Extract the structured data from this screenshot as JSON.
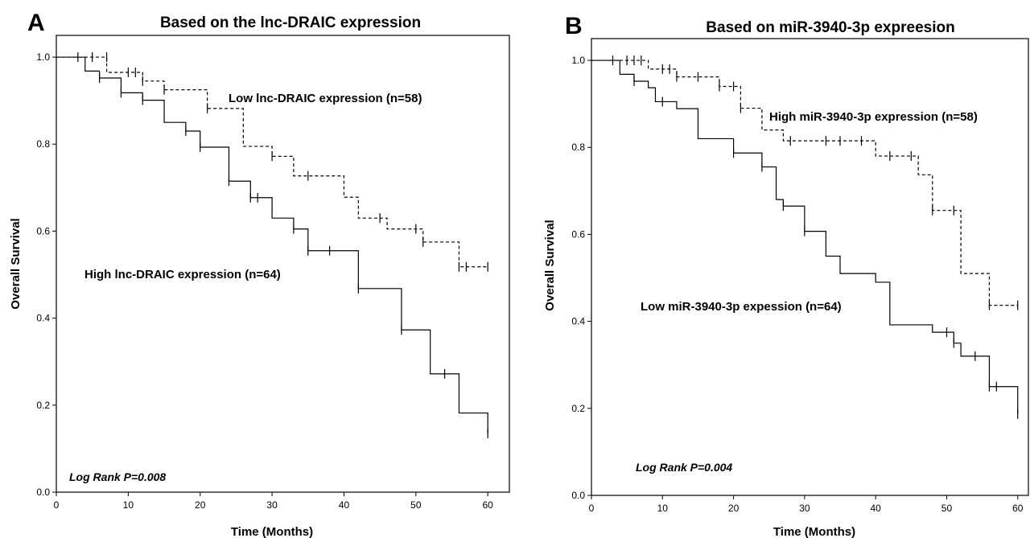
{
  "chart_data": [
    {
      "type": "line",
      "panel_letter": "A",
      "title": "Based on the lnc-DRAIC expression",
      "xlabel": "Time (Months)",
      "ylabel": "Overall Survival",
      "xlim": [
        0,
        63
      ],
      "ylim": [
        0.0,
        1.05
      ],
      "xticks": [
        0,
        10,
        20,
        30,
        40,
        50,
        60
      ],
      "xtick_labels": [
        "0",
        "10",
        "20",
        "30",
        "40",
        "50",
        "60"
      ],
      "yticks": [
        0.0,
        0.2,
        0.4,
        0.6,
        0.8,
        1.0
      ],
      "ytick_labels": [
        "0.0",
        "0.2",
        "0.4",
        "0.6",
        "0.8",
        "1.0"
      ],
      "annotation": "Log Rank P=0.008",
      "series": [
        {
          "name": "Low lnc-DRAIC expression (n=58)",
          "style": "dashed",
          "steps": [
            [
              0,
              1.0
            ],
            [
              7,
              0.965
            ],
            [
              12,
              0.945
            ],
            [
              15,
              0.925
            ],
            [
              21,
              0.882
            ],
            [
              26,
              0.795
            ],
            [
              30,
              0.772
            ],
            [
              33,
              0.727
            ],
            [
              40,
              0.678
            ],
            [
              42,
              0.63
            ],
            [
              46,
              0.605
            ],
            [
              51,
              0.575
            ],
            [
              56,
              0.518
            ]
          ],
          "end_x": 60,
          "censored": [
            [
              3,
              1.0
            ],
            [
              5,
              1.0
            ],
            [
              7,
              1.0
            ],
            [
              10,
              0.965
            ],
            [
              11,
              0.965
            ],
            [
              12,
              0.945
            ],
            [
              15,
              0.925
            ],
            [
              21,
              0.882
            ],
            [
              30,
              0.772
            ],
            [
              35,
              0.727
            ],
            [
              45,
              0.63
            ],
            [
              50,
              0.605
            ],
            [
              51,
              0.575
            ],
            [
              56,
              0.518
            ],
            [
              57,
              0.518
            ],
            [
              60,
              0.518
            ]
          ]
        },
        {
          "name": "High lnc-DRAIC expression (n=64)",
          "style": "solid",
          "steps": [
            [
              0,
              1.0
            ],
            [
              4,
              0.968
            ],
            [
              6,
              0.952
            ],
            [
              9,
              0.918
            ],
            [
              12,
              0.901
            ],
            [
              15,
              0.85
            ],
            [
              18,
              0.83
            ],
            [
              20,
              0.793
            ],
            [
              24,
              0.715
            ],
            [
              27,
              0.677
            ],
            [
              30,
              0.63
            ],
            [
              33,
              0.605
            ],
            [
              35,
              0.555
            ],
            [
              42,
              0.468
            ],
            [
              48,
              0.373
            ],
            [
              52,
              0.272
            ],
            [
              56,
              0.182
            ],
            [
              60,
              0.135
            ]
          ],
          "end_x": 60,
          "censored": [
            [
              6,
              0.952
            ],
            [
              9,
              0.918
            ],
            [
              12,
              0.901
            ],
            [
              18,
              0.83
            ],
            [
              20,
              0.793
            ],
            [
              24,
              0.715
            ],
            [
              27,
              0.677
            ],
            [
              28,
              0.677
            ],
            [
              33,
              0.605
            ],
            [
              35,
              0.555
            ],
            [
              38,
              0.555
            ],
            [
              42,
              0.468
            ],
            [
              48,
              0.373
            ],
            [
              54,
              0.272
            ],
            [
              60,
              0.135
            ]
          ]
        }
      ]
    },
    {
      "type": "line",
      "panel_letter": "B",
      "title": "Based on miR-3940-3p expreesion",
      "xlabel": "Time (Months)",
      "ylabel": "Overall Survival",
      "xlim": [
        0,
        61.5
      ],
      "ylim": [
        0.0,
        1.05
      ],
      "xticks": [
        0,
        10,
        20,
        30,
        40,
        50,
        60
      ],
      "xtick_labels": [
        "0",
        "10",
        "20",
        "30",
        "40",
        "50",
        "60"
      ],
      "yticks": [
        0.0,
        0.2,
        0.4,
        0.6,
        0.8,
        1.0
      ],
      "ytick_labels": [
        "0.0",
        "0.2",
        "0.4",
        "0.6",
        "0.8",
        "1.0"
      ],
      "annotation": "Log Rank P=0.004",
      "series": [
        {
          "name": "High miR-3940-3p expression (n=58)",
          "style": "dashed",
          "steps": [
            [
              0,
              1.0
            ],
            [
              8,
              0.98
            ],
            [
              12,
              0.962
            ],
            [
              18,
              0.94
            ],
            [
              21,
              0.89
            ],
            [
              24,
              0.84
            ],
            [
              27,
              0.815
            ],
            [
              40,
              0.78
            ],
            [
              46,
              0.737
            ],
            [
              48,
              0.655
            ],
            [
              52,
              0.51
            ],
            [
              56,
              0.437
            ]
          ],
          "end_x": 60,
          "censored": [
            [
              3,
              1.0
            ],
            [
              5,
              1.0
            ],
            [
              6,
              1.0
            ],
            [
              7,
              1.0
            ],
            [
              10,
              0.98
            ],
            [
              11,
              0.98
            ],
            [
              12,
              0.962
            ],
            [
              15,
              0.962
            ],
            [
              18,
              0.94
            ],
            [
              20,
              0.94
            ],
            [
              21,
              0.89
            ],
            [
              28,
              0.815
            ],
            [
              33,
              0.815
            ],
            [
              35,
              0.815
            ],
            [
              38,
              0.815
            ],
            [
              42,
              0.78
            ],
            [
              45,
              0.78
            ],
            [
              48,
              0.655
            ],
            [
              51,
              0.655
            ],
            [
              56,
              0.437
            ],
            [
              60,
              0.437
            ]
          ]
        },
        {
          "name": "Low miR-3940-3p expession (n=64)",
          "style": "solid",
          "steps": [
            [
              0,
              1.0
            ],
            [
              4,
              0.968
            ],
            [
              6,
              0.952
            ],
            [
              8,
              0.937
            ],
            [
              9,
              0.905
            ],
            [
              12,
              0.889
            ],
            [
              15,
              0.82
            ],
            [
              20,
              0.787
            ],
            [
              24,
              0.755
            ],
            [
              26,
              0.68
            ],
            [
              27,
              0.665
            ],
            [
              30,
              0.607
            ],
            [
              33,
              0.55
            ],
            [
              35,
              0.51
            ],
            [
              40,
              0.49
            ],
            [
              42,
              0.392
            ],
            [
              48,
              0.375
            ],
            [
              51,
              0.35
            ],
            [
              52,
              0.32
            ],
            [
              56,
              0.25
            ],
            [
              60,
              0.187
            ]
          ],
          "end_x": 60,
          "censored": [
            [
              6,
              0.952
            ],
            [
              10,
              0.905
            ],
            [
              20,
              0.787
            ],
            [
              24,
              0.755
            ],
            [
              27,
              0.665
            ],
            [
              30,
              0.607
            ],
            [
              50,
              0.375
            ],
            [
              51,
              0.35
            ],
            [
              54,
              0.32
            ],
            [
              56,
              0.25
            ],
            [
              57,
              0.25
            ],
            [
              60,
              0.187
            ]
          ]
        }
      ]
    }
  ]
}
